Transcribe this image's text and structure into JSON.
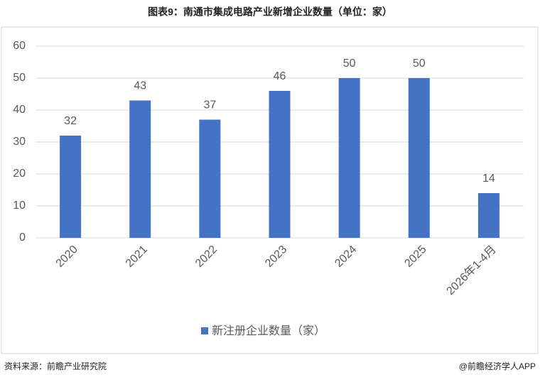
{
  "chart_data": {
    "type": "bar",
    "title": "图表9：南通市集成电路产业新增企业数量（单位：家）",
    "categories": [
      "2020",
      "2021",
      "2022",
      "2023",
      "2024",
      "2025",
      "2026年1-4月"
    ],
    "series": [
      {
        "name": "新注册企业数量（家）",
        "color": "#4472c4",
        "values": [
          32,
          43,
          37,
          46,
          50,
          50,
          14
        ]
      }
    ],
    "ylim": [
      0,
      60
    ],
    "yticks": [
      0,
      10,
      20,
      30,
      40,
      50,
      60
    ],
    "grid": true,
    "source": "资料来源：前瞻产业研究院",
    "credit": "@前瞻经济学人APP"
  }
}
